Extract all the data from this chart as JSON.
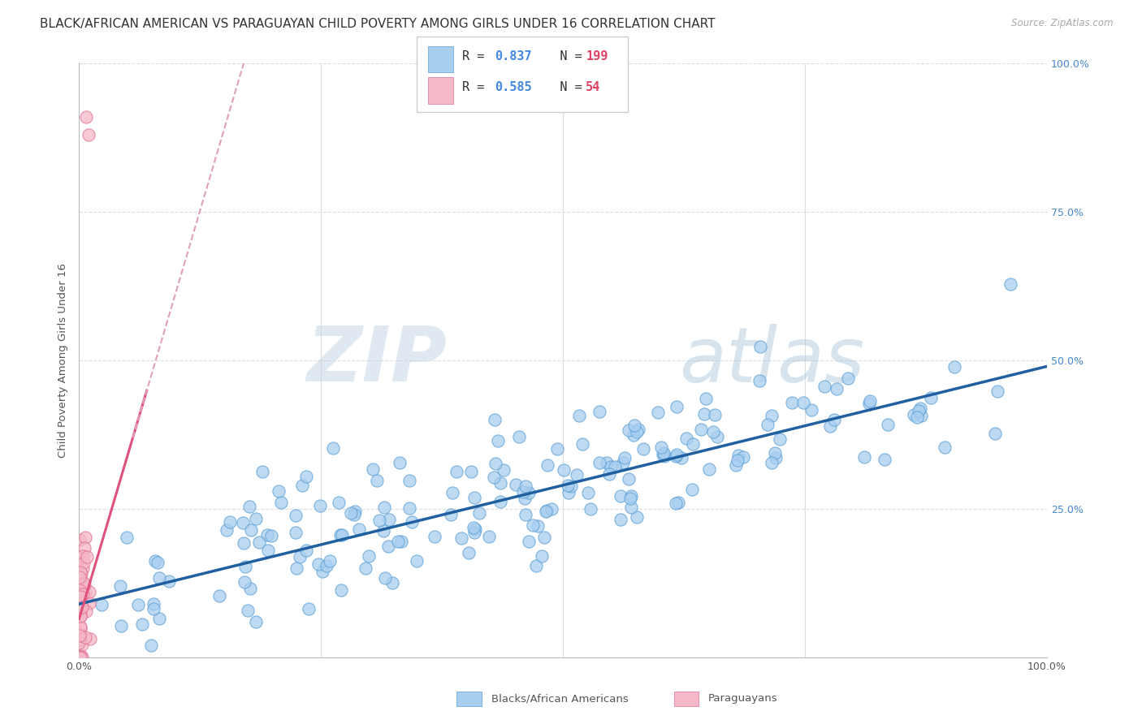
{
  "title": "BLACK/AFRICAN AMERICAN VS PARAGUAYAN CHILD POVERTY AMONG GIRLS UNDER 16 CORRELATION CHART",
  "source": "Source: ZipAtlas.com",
  "ylabel": "Child Poverty Among Girls Under 16",
  "watermark_zip": "ZIP",
  "watermark_atlas": "atlas",
  "blue_R": 0.837,
  "blue_N": 199,
  "pink_R": 0.585,
  "pink_N": 54,
  "blue_color": "#a8cef0",
  "blue_edge_color": "#5a9fd4",
  "blue_line_color": "#2060a0",
  "pink_color": "#f5b8c8",
  "pink_edge_color": "#e07090",
  "pink_line_color": "#e0507a",
  "legend_R_color": "#4488dd",
  "legend_N_color": "#dd4466",
  "background_color": "#ffffff",
  "grid_color": "#dddddd",
  "title_fontsize": 11,
  "axis_label_fontsize": 9.5,
  "tick_label_fontsize": 9,
  "seed": 42,
  "blue_slope": 0.4,
  "blue_intercept": 0.09,
  "pink_slope": 5.5,
  "pink_intercept": 0.065
}
